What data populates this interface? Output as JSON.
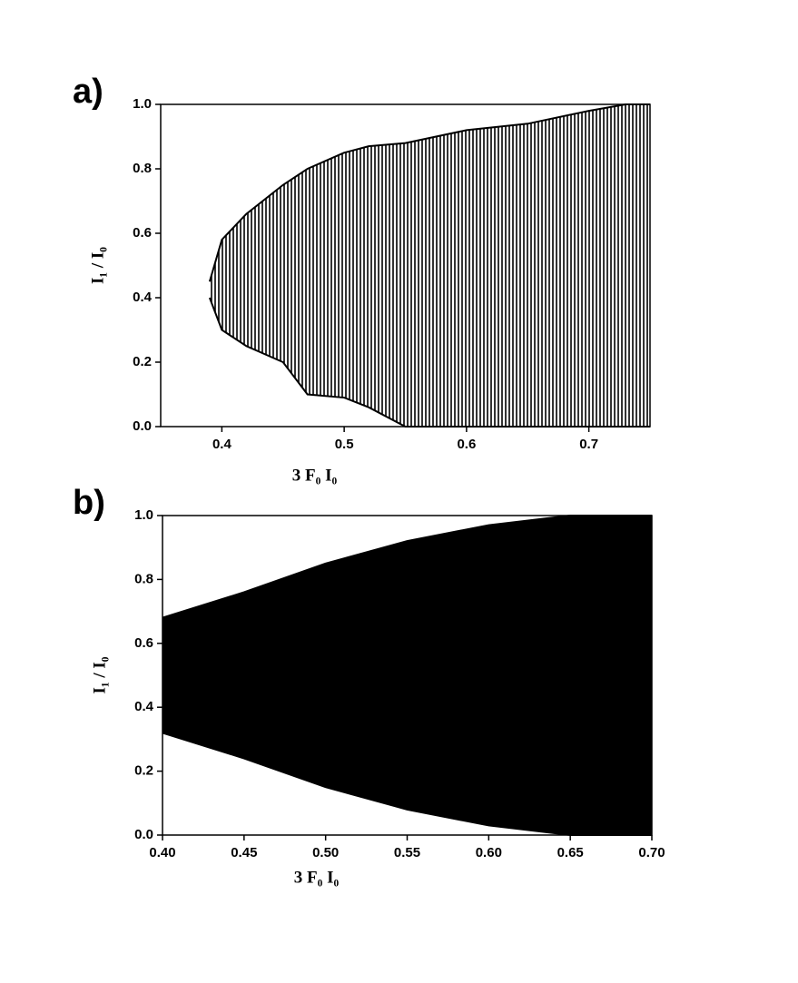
{
  "chart_data": [
    {
      "type": "band",
      "label": "a)",
      "fill": "hatch",
      "color": "#000000",
      "xlabel": "3 F₀ I₀",
      "ylabel": "I₁ / I₀",
      "x": [
        0.39,
        0.4,
        0.42,
        0.45,
        0.47,
        0.5,
        0.52,
        0.55,
        0.6,
        0.65,
        0.7,
        0.73,
        0.75
      ],
      "upper": [
        0.45,
        0.58,
        0.66,
        0.75,
        0.8,
        0.85,
        0.87,
        0.88,
        0.92,
        0.94,
        0.98,
        1.0,
        1.0
      ],
      "lower": [
        0.4,
        0.3,
        0.25,
        0.2,
        0.1,
        0.09,
        0.06,
        0.0,
        0.0,
        0.0,
        0.0,
        0.0,
        0.0
      ],
      "xlim": [
        0.35,
        0.75
      ],
      "ylim": [
        0,
        1
      ],
      "xticks": [
        0.4,
        0.5,
        0.6,
        0.7
      ],
      "yticks": [
        {
          "value": 0,
          "label": "0.0"
        },
        0.2,
        0.4,
        0.6,
        0.8,
        {
          "value": 1,
          "label": "1.0"
        }
      ]
    },
    {
      "type": "band",
      "label": "b)",
      "fill": "solid",
      "color": "#000000",
      "xlabel": "3 F₀ I₀",
      "ylabel": "I₁ / I₀",
      "x": [
        0.4,
        0.45,
        0.5,
        0.55,
        0.6,
        0.65,
        0.7
      ],
      "upper": [
        0.68,
        0.76,
        0.85,
        0.92,
        0.97,
        1.0,
        1.0
      ],
      "lower": [
        0.32,
        0.24,
        0.15,
        0.08,
        0.03,
        0.0,
        0.0
      ],
      "xlim": [
        0.4,
        0.7
      ],
      "ylim": [
        0,
        1
      ],
      "xticks": [
        {
          "value": 0.4,
          "label": "0.40"
        },
        {
          "value": 0.45,
          "label": "0.45"
        },
        {
          "value": 0.5,
          "label": "0.50"
        },
        {
          "value": 0.55,
          "label": "0.55"
        },
        {
          "value": 0.6,
          "label": "0.60"
        },
        {
          "value": 0.65,
          "label": "0.65"
        },
        {
          "value": 0.7,
          "label": "0.70"
        }
      ],
      "yticks": [
        {
          "value": 0,
          "label": "0.0"
        },
        0.2,
        0.4,
        0.6,
        0.8,
        {
          "value": 1,
          "label": "1.0"
        }
      ]
    }
  ]
}
